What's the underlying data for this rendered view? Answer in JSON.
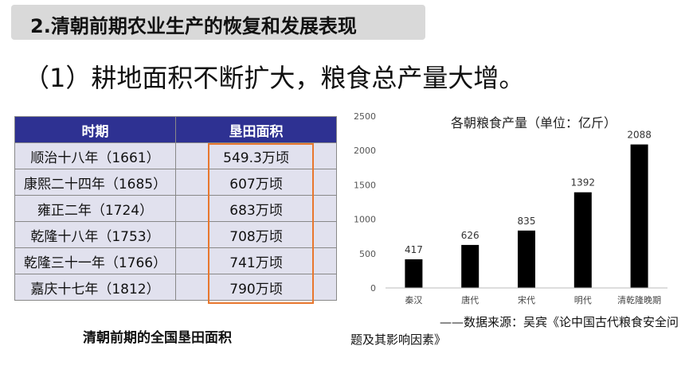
{
  "header": {
    "title": "2.清朝前期农业生产的恢复和发展表现",
    "subtitle": "（1）耕地面积不断扩大，粮食总产量大增。"
  },
  "table": {
    "headers": [
      "时期",
      "垦田面积"
    ],
    "rows": [
      [
        "顺治十八年（1661）",
        "549.3万顷"
      ],
      [
        "康熙二十四年（1685）",
        "607万顷"
      ],
      [
        "雍正二年（1724）",
        "683万顷"
      ],
      [
        "乾隆十八年（1753）",
        "708万顷"
      ],
      [
        "乾隆三十一年（1766）",
        "741万顷"
      ],
      [
        "嘉庆十七年（1812）",
        "790万顷"
      ]
    ],
    "caption": "清朝前期的全国垦田面积",
    "highlight_color": "#e8772e",
    "header_color": "#2e3192"
  },
  "chart_data": {
    "type": "bar",
    "title": "各朝粮食产量（单位：亿斤）",
    "categories": [
      "秦汉",
      "唐代",
      "宋代",
      "明代",
      "清乾隆晚期"
    ],
    "values": [
      417,
      626,
      835,
      1392,
      2088
    ],
    "ylim": [
      0,
      2500
    ],
    "yticks": [
      0,
      500,
      1000,
      1500,
      2000,
      2500
    ],
    "xlabel": "",
    "ylabel": "",
    "grid": false,
    "bar_color": "#000000"
  },
  "source": {
    "line1": "——数据来源：吴宾《论中国古代粮食安全问",
    "line2": "题及其影响因素》"
  }
}
